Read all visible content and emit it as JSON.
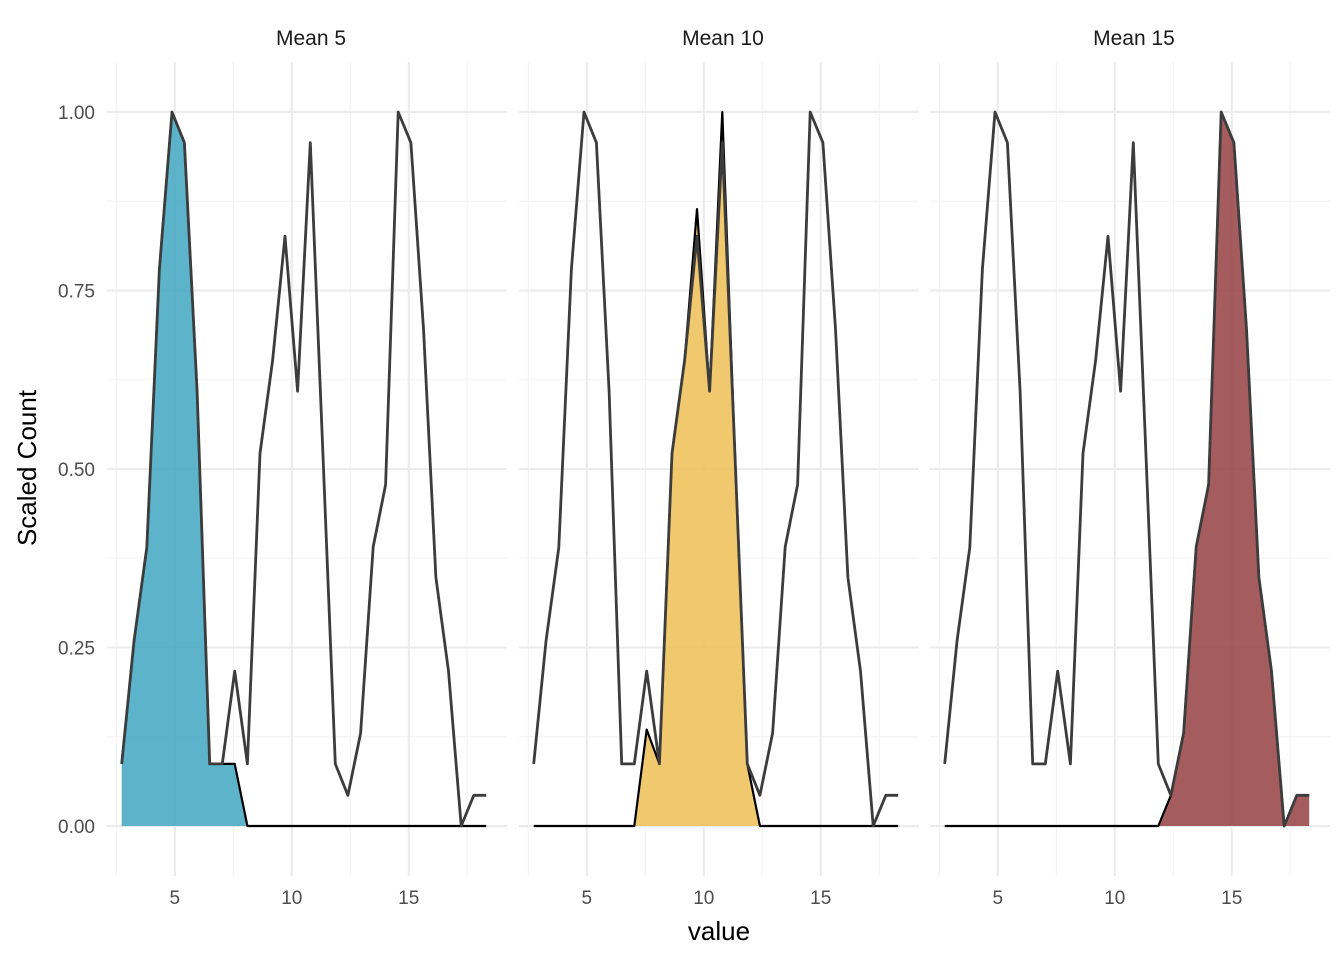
{
  "chart_data": {
    "type": "area",
    "facet_strips": [
      "Mean 5",
      "Mean 10",
      "Mean 15"
    ],
    "xlabel": "value",
    "ylabel": "Scaled Count",
    "xlim": [
      2.1,
      19.2
    ],
    "ylim": [
      -0.07,
      1.07
    ],
    "x_ticks": [
      5,
      10,
      15
    ],
    "x_tick_labels": [
      "5",
      "10",
      "15"
    ],
    "y_ticks": [
      0,
      0.25,
      0.5,
      0.75,
      1.0
    ],
    "y_tick_labels": [
      "0.00",
      "0.25",
      "0.50",
      "0.75",
      "1.00"
    ],
    "grid": true,
    "theme": "minimal",
    "x": [
      2.73,
      3.26,
      3.8,
      4.34,
      4.88,
      5.41,
      5.95,
      6.49,
      7.03,
      7.56,
      8.1,
      8.64,
      9.18,
      9.71,
      10.25,
      10.79,
      11.33,
      11.86,
      12.4,
      12.94,
      13.48,
      14.01,
      14.55,
      15.09,
      15.63,
      16.16,
      16.7,
      17.24,
      17.78,
      18.31
    ],
    "overall_series": {
      "name": "all",
      "color": "#3c3c3c",
      "values": [
        0.087,
        0.26,
        0.39,
        0.78,
        1.0,
        0.957,
        0.609,
        0.087,
        0.087,
        0.217,
        0.087,
        0.522,
        0.652,
        0.826,
        0.609,
        0.957,
        0.522,
        0.087,
        0.043,
        0.13,
        0.391,
        0.478,
        1.0,
        0.957,
        0.696,
        0.348,
        0.217,
        0.0,
        0.043,
        0.043
      ]
    },
    "series": [
      {
        "facet": "Mean 5",
        "fill": "#4aabc4",
        "values": [
          0.087,
          0.26,
          0.39,
          0.78,
          1.0,
          0.957,
          0.609,
          0.087,
          0.087,
          0.087,
          0.0,
          0.0,
          0.0,
          0.0,
          0.0,
          0.0,
          0.0,
          0.0,
          0.0,
          0.0,
          0.0,
          0.0,
          0.0,
          0.0,
          0.0,
          0.0,
          0.0,
          0.0,
          0.0,
          0.0
        ]
      },
      {
        "facet": "Mean 10",
        "fill": "#eec25e",
        "values": [
          0.0,
          0.0,
          0.0,
          0.0,
          0.0,
          0.0,
          0.0,
          0.0,
          0.0,
          0.135,
          0.087,
          0.522,
          0.652,
          0.864,
          0.609,
          1.0,
          0.522,
          0.087,
          0.0,
          0.0,
          0.0,
          0.0,
          0.0,
          0.0,
          0.0,
          0.0,
          0.0,
          0.0,
          0.0,
          0.0
        ]
      },
      {
        "facet": "Mean 15",
        "fill": "#9b4a4c",
        "values": [
          0.0,
          0.0,
          0.0,
          0.0,
          0.0,
          0.0,
          0.0,
          0.0,
          0.0,
          0.0,
          0.0,
          0.0,
          0.0,
          0.0,
          0.0,
          0.0,
          0.0,
          0.0,
          0.043,
          0.13,
          0.391,
          0.478,
          1.0,
          0.957,
          0.696,
          0.348,
          0.217,
          0.0,
          0.043,
          0.043
        ]
      }
    ]
  }
}
